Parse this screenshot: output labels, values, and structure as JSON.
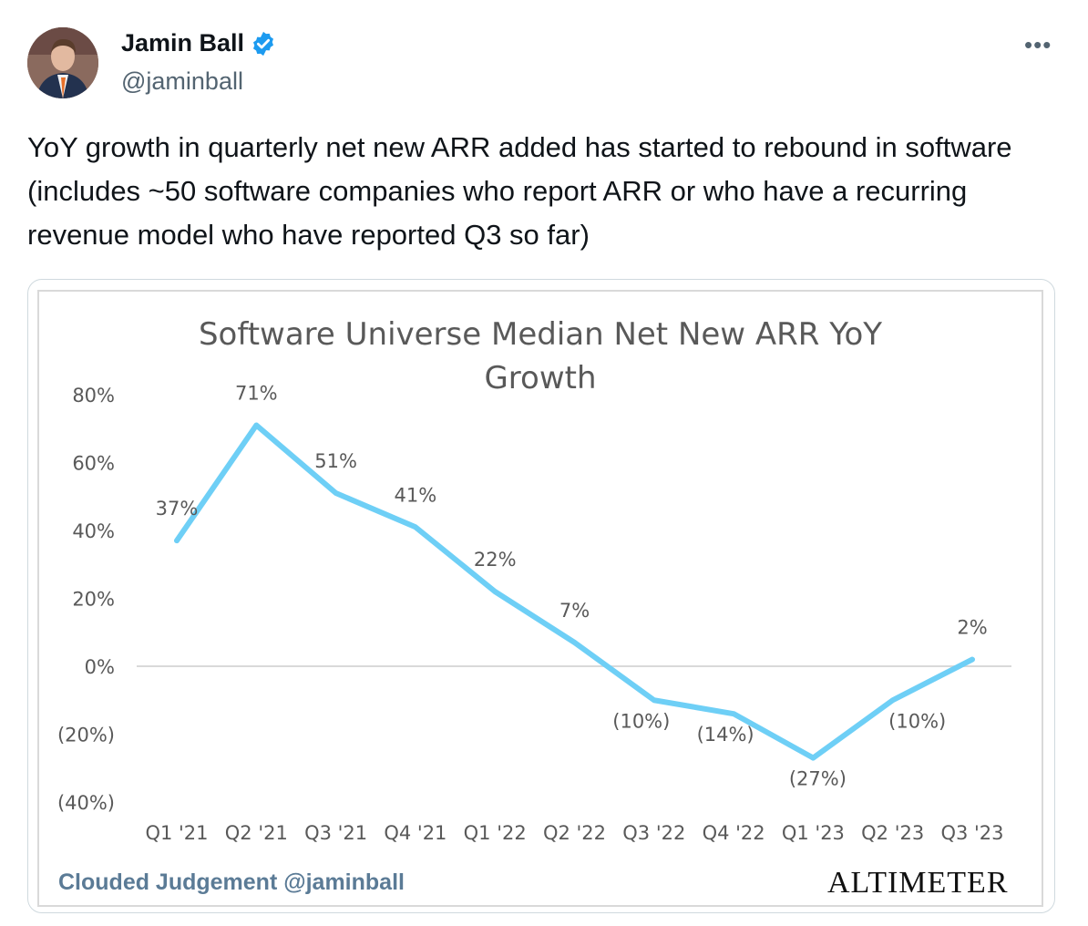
{
  "tweet": {
    "author_name": "Jamin Ball",
    "handle": "@jaminball",
    "more_label": "•••",
    "text": "YoY growth in quarterly net new ARR added has started to rebound in software (includes ~50 software companies who report ARR or who have a recurring revenue model who have reported Q3 so far)"
  },
  "image": {
    "footer_left": "Clouded Judgement @jaminball",
    "footer_right": "ALTIMETER"
  },
  "colors": {
    "line": "#6ecff6",
    "verified": "#1d9bf0",
    "grid": "#d9d9d9"
  },
  "chart_data": {
    "type": "line",
    "title": "Software Universe Median Net New ARR YoY Growth",
    "title_lines": [
      "Software Universe Median Net New ARR YoY",
      "Growth"
    ],
    "categories": [
      "Q1 '21",
      "Q2 '21",
      "Q3 '21",
      "Q4 '21",
      "Q1 '22",
      "Q2 '22",
      "Q3 '22",
      "Q4 '22",
      "Q1 '23",
      "Q2 '23",
      "Q3 '23"
    ],
    "values": [
      37,
      71,
      51,
      41,
      22,
      7,
      -10,
      -14,
      -27,
      -10,
      2
    ],
    "data_labels": [
      "37%",
      "71%",
      "51%",
      "41%",
      "22%",
      "7%",
      "(10%)",
      "(14%)",
      "(27%)",
      "(10%)",
      "2%"
    ],
    "yticks": [
      80,
      60,
      40,
      20,
      0,
      -20,
      -40
    ],
    "ytick_labels": [
      "80%",
      "60%",
      "40%",
      "20%",
      "0%",
      "(20%)",
      "(40%)"
    ],
    "ylim": [
      -40,
      80
    ],
    "xlabel": "",
    "ylabel": "",
    "grid": false
  }
}
